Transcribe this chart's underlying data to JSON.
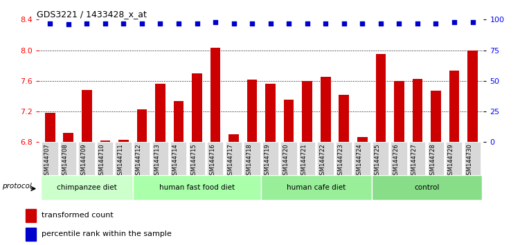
{
  "title": "GDS3221 / 1433428_x_at",
  "samples": [
    "GSM144707",
    "GSM144708",
    "GSM144709",
    "GSM144710",
    "GSM144711",
    "GSM144712",
    "GSM144713",
    "GSM144714",
    "GSM144715",
    "GSM144716",
    "GSM144717",
    "GSM144718",
    "GSM144719",
    "GSM144720",
    "GSM144721",
    "GSM144722",
    "GSM144723",
    "GSM144724",
    "GSM144725",
    "GSM144726",
    "GSM144727",
    "GSM144728",
    "GSM144729",
    "GSM144730"
  ],
  "bar_values": [
    7.18,
    6.92,
    7.48,
    6.82,
    6.83,
    7.23,
    7.56,
    7.34,
    7.7,
    8.03,
    6.9,
    7.62,
    7.56,
    7.35,
    7.6,
    7.65,
    7.42,
    6.87,
    7.95,
    7.6,
    7.63,
    7.47,
    7.73,
    8.0
  ],
  "percentile_values": [
    97,
    96,
    97,
    97,
    97,
    97,
    97,
    97,
    97,
    98,
    97,
    97,
    97,
    97,
    97,
    97,
    97,
    97,
    97,
    97,
    97,
    97,
    98,
    98
  ],
  "groups": [
    {
      "label": "chimpanzee diet",
      "start": 0,
      "end": 5,
      "color": "#ccffcc"
    },
    {
      "label": "human fast food diet",
      "start": 5,
      "end": 12,
      "color": "#aaffaa"
    },
    {
      "label": "human cafe diet",
      "start": 12,
      "end": 18,
      "color": "#99ee99"
    },
    {
      "label": "control",
      "start": 18,
      "end": 24,
      "color": "#88dd88"
    }
  ],
  "bar_color": "#cc0000",
  "dot_color": "#0000cc",
  "ylim_left": [
    6.8,
    8.4
  ],
  "ylim_right": [
    0,
    100
  ],
  "yticks_left": [
    6.8,
    7.2,
    7.6,
    8.0,
    8.4
  ],
  "yticks_right": [
    0,
    25,
    50,
    75,
    100
  ],
  "grid_values": [
    7.2,
    7.6,
    8.0
  ],
  "baseline": 6.8
}
